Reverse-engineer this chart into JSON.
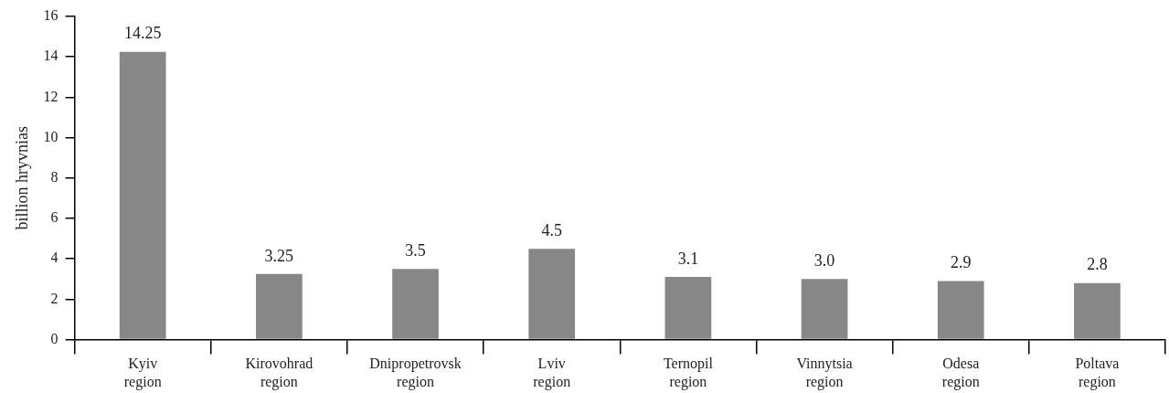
{
  "chart_data": {
    "type": "bar",
    "ylabel": "billion hryvnias",
    "categories": [
      "Kyiv region",
      "Kirovohrad region",
      "Dnipropetrovsk region",
      "Lviv region",
      "Ternopil region",
      "Vinnytsia region",
      "Odesa region",
      "Poltava region"
    ],
    "values": [
      14.25,
      3.25,
      3.5,
      4.5,
      3.1,
      3.0,
      2.9,
      2.8
    ],
    "value_labels": [
      "14.25",
      "3.25",
      "3.5",
      "4.5",
      "3.1",
      "3.0",
      "2.9",
      "2.8"
    ],
    "color": "#878787",
    "ylim": [
      0,
      16
    ],
    "yticks": [
      0,
      2,
      4,
      6,
      8,
      10,
      12,
      14,
      16
    ],
    "grid": false,
    "legend": false
  }
}
